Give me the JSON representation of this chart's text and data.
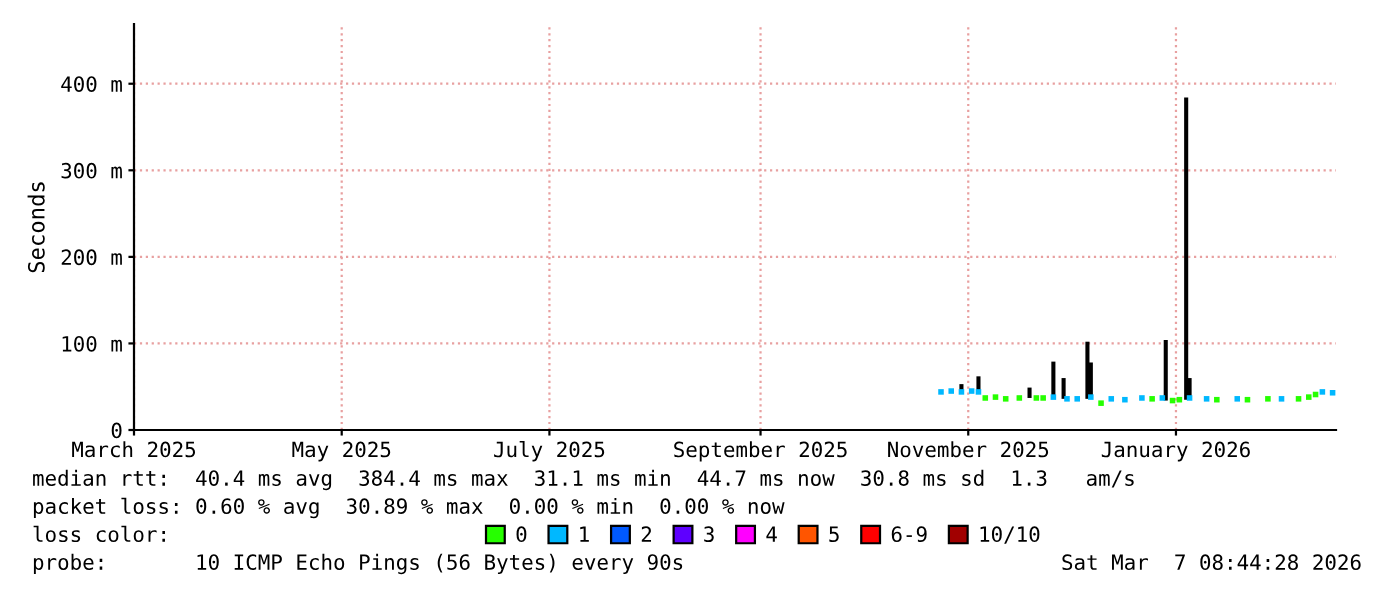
{
  "chart_data": {
    "type": "scatter",
    "ylabel": "Seconds",
    "legend_title": "loss color:",
    "legend": "bottom",
    "grid": true,
    "marker": "square",
    "xlim": [
      "2025-03-01",
      "2026-02-17"
    ],
    "xticks": [
      {
        "value": "2025-03-01",
        "label": "March 2025"
      },
      {
        "value": "2025-05-01",
        "label": "May 2025"
      },
      {
        "value": "2025-07-01",
        "label": "July 2025"
      },
      {
        "value": "2025-09-01",
        "label": "September 2025"
      },
      {
        "value": "2025-11-01",
        "label": "November 2025"
      },
      {
        "value": "2026-01-01",
        "label": "January 2026"
      }
    ],
    "ylim": [
      0,
      469
    ],
    "yticks": [
      0,
      {
        "value": 100,
        "label": "100 m"
      },
      {
        "value": 200,
        "label": "200 m"
      },
      {
        "value": 300,
        "label": "300 m"
      },
      {
        "value": 400,
        "label": "400 m"
      }
    ],
    "series": [
      {
        "type": "bar",
        "color": "#000000",
        "x": [
          "2025-10-30",
          "2025-11-04",
          "2025-11-19",
          "2025-11-26",
          "2025-11-29",
          "2025-12-06",
          "2025-12-07",
          "2025-12-29",
          "2026-01-04",
          "2026-01-05"
        ],
        "base": [
          44,
          44,
          37,
          38,
          36,
          36,
          36,
          34,
          35,
          35
        ],
        "values": [
          9,
          18,
          12,
          41,
          24,
          66,
          42,
          70,
          349,
          25
        ]
      },
      {
        "name": "0",
        "color": "#26ff00",
        "x": [
          "2025-11-06",
          "2025-11-09",
          "2025-11-12",
          "2025-11-16",
          "2025-11-21",
          "2025-11-23",
          "2025-12-10",
          "2025-12-25",
          "2025-12-31",
          "2026-01-02",
          "2026-01-13",
          "2026-01-22",
          "2026-01-28",
          "2026-02-06",
          "2026-02-09",
          "2026-02-11"
        ],
        "values": [
          37,
          38,
          36,
          37,
          37,
          37,
          31,
          36,
          34,
          35,
          35,
          35,
          36,
          36,
          38,
          41
        ]
      },
      {
        "name": "1",
        "color": "#00b8ff",
        "x": [
          "2025-10-24",
          "2025-10-27",
          "2025-10-30",
          "2025-11-02",
          "2025-11-04",
          "2025-11-26",
          "2025-11-30",
          "2025-12-03",
          "2025-12-07",
          "2025-12-13",
          "2025-12-17",
          "2025-12-22",
          "2025-12-28",
          "2026-01-05",
          "2026-01-10",
          "2026-01-19",
          "2026-02-01",
          "2026-02-13",
          "2026-02-16"
        ],
        "values": [
          44,
          45,
          44,
          45,
          44,
          38,
          36,
          36,
          38,
          36,
          35,
          37,
          37,
          37,
          36,
          36,
          36,
          44,
          43
        ]
      },
      {
        "name": "2",
        "color": "#0059ff"
      },
      {
        "name": "3",
        "color": "#5e00ff"
      },
      {
        "name": "4",
        "color": "#ff00ff"
      },
      {
        "name": "5",
        "color": "#ff5500"
      },
      {
        "name": "6-9",
        "color": "#ff0000"
      },
      {
        "name": "10/10",
        "color": "#a10000"
      }
    ],
    "annotations": [
      "median rtt:  40.4 ms avg  384.4 ms max  31.1 ms min  44.7 ms now  30.8 ms sd  1.3   am/s",
      "packet loss: 0.60 % avg  30.89 % max  0.00 % min  0.00 % now",
      "probe:       10 ICMP Echo Pings (56 Bytes) every 90s",
      "Sat Mar  7 08:44:28 2026"
    ]
  }
}
